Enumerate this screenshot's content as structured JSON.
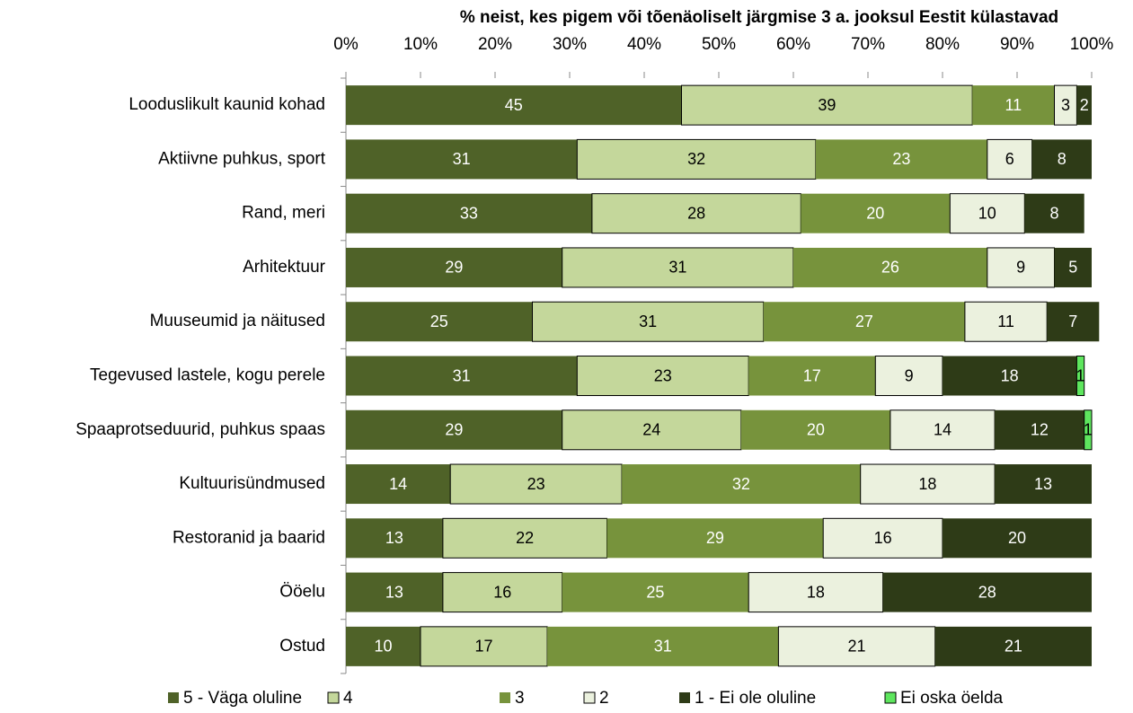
{
  "chart_data": {
    "type": "stacked-barh",
    "xlabel": "% neist, kes pigem või tõenäoliselt järgmise 3 a. jooksul Eestit külastavad",
    "categories": [
      "Looduslikult kaunid kohad",
      "Aktiivne puhkus, sport",
      "Rand, meri",
      "Arhitektuur",
      "Muuseumid ja näitused",
      "Tegevused lastele, kogu perele",
      "Spaaprotseduurid, puhkus spaas",
      "Kultuurisündmused",
      "Restoranid ja baarid",
      "Ööelu",
      "Ostud"
    ],
    "series": [
      {
        "name": "5 - Väga oluline",
        "color": "#4f6228",
        "label_color": "#ffffff",
        "border": false,
        "values": [
          45,
          31,
          33,
          29,
          25,
          31,
          29,
          14,
          13,
          13,
          10
        ]
      },
      {
        "name": "4",
        "color": "#c4d79b",
        "label_color": "#000000",
        "border": true,
        "values": [
          39,
          32,
          28,
          31,
          31,
          23,
          24,
          23,
          22,
          16,
          17
        ]
      },
      {
        "name": "3",
        "color": "#77933c",
        "label_color": "#ffffff",
        "border": false,
        "values": [
          11,
          23,
          20,
          26,
          27,
          17,
          20,
          32,
          29,
          25,
          31
        ]
      },
      {
        "name": "2",
        "color": "#ebf1de",
        "label_color": "#000000",
        "border": true,
        "values": [
          3,
          6,
          10,
          9,
          11,
          9,
          14,
          18,
          16,
          18,
          21
        ]
      },
      {
        "name": "1 - Ei ole oluline",
        "color": "#2e3b17",
        "label_color": "#ffffff",
        "border": false,
        "values": [
          2,
          8,
          8,
          5,
          7,
          18,
          12,
          13,
          20,
          28,
          21
        ]
      },
      {
        "name": "Ei oska öelda",
        "color": "#5ee65e",
        "label_color": "#000000",
        "border": true,
        "values": [
          null,
          null,
          null,
          null,
          null,
          1,
          1,
          null,
          null,
          null,
          null
        ]
      }
    ],
    "xlim": [
      0,
      100
    ],
    "xticks": [
      {
        "value": 0,
        "label": "0%"
      },
      {
        "value": 10,
        "label": "10%"
      },
      {
        "value": 20,
        "label": "20%"
      },
      {
        "value": 30,
        "label": "30%"
      },
      {
        "value": 40,
        "label": "40%"
      },
      {
        "value": 50,
        "label": "50%"
      },
      {
        "value": 60,
        "label": "60%"
      },
      {
        "value": 70,
        "label": "70%"
      },
      {
        "value": 80,
        "label": "80%"
      },
      {
        "value": 90,
        "label": "90%"
      },
      {
        "value": 100,
        "label": "100%"
      }
    ],
    "legend": "bottom"
  }
}
